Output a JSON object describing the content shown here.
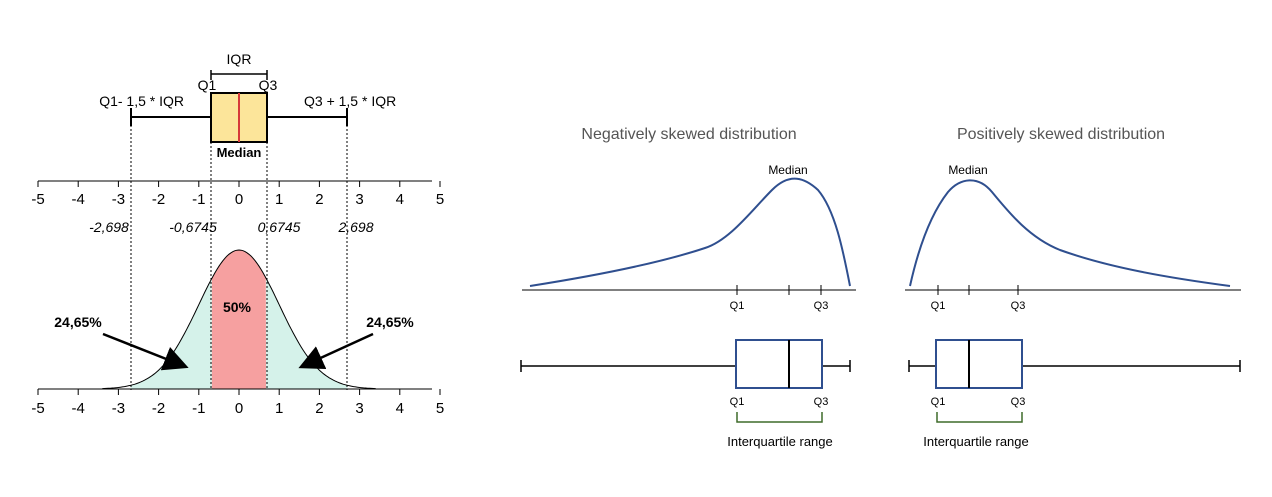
{
  "left_diagram": {
    "iqr_label": "IQR",
    "q1_label": "Q1",
    "q3_label": "Q3",
    "lower_fence_label": "Q1- 1,5 * IQR",
    "upper_fence_label": "Q3 + 1,5 * IQR",
    "median_label": "Median",
    "axis_ticks": [
      "-5",
      "-4",
      "-3",
      "-2",
      "-1",
      "0",
      "1",
      "2",
      "3",
      "4",
      "5"
    ],
    "z_values": [
      "-2,698",
      "-0,6745",
      "0,6745",
      "2,698"
    ],
    "center_percent": "50%",
    "left_tail_percent": "24,65%",
    "right_tail_percent": "24,65%",
    "colors": {
      "box_fill": "#fce59a",
      "median_line": "#d63a3a",
      "center_fill": "#f6a0a0",
      "tail_fill": "#d5f2ea"
    }
  },
  "negative_skew": {
    "title": "Negatively skewed distribution",
    "median_label": "Median",
    "axis_q1": "Q1",
    "axis_q3": "Q3",
    "box_q1": "Q1",
    "box_q3": "Q3",
    "iqr_label": "Interquartile range"
  },
  "positive_skew": {
    "title": "Positively skewed distribution",
    "median_label": "Median",
    "axis_q1": "Q1",
    "axis_q3": "Q3",
    "box_q1": "Q1",
    "box_q3": "Q3",
    "iqr_label": "Interquartile range"
  },
  "colors": {
    "curve": "#2f4f8f",
    "box_stroke": "#2f4f8f",
    "bracket": "#3f6b2a"
  }
}
